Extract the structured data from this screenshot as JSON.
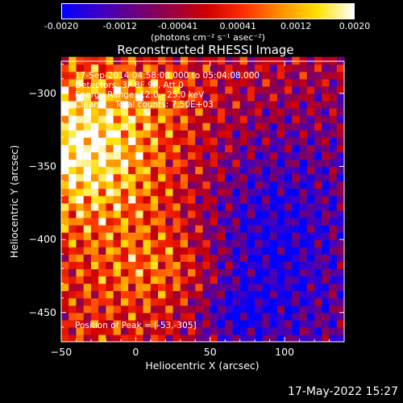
{
  "colorbar": {
    "tick_labels": [
      "-0.0020",
      "-0.0012",
      "-0.00041",
      "0.00041",
      "0.0012",
      "0.0020"
    ],
    "tick_values": [
      -0.002,
      -0.0012,
      -0.00041,
      0.00041,
      0.0012,
      0.002
    ],
    "range": [
      -0.002,
      0.002
    ],
    "units_text": "(photons cm⁻² s⁻¹ asec⁻²)",
    "colors": [
      "#0000ff",
      "#3b00c8",
      "#6a0080",
      "#9a0040",
      "#d00000",
      "#ff3000",
      "#ff9000",
      "#ffe000",
      "#ffffff"
    ]
  },
  "chart_data": {
    "type": "heatmap",
    "title": "Reconstructed RHESSI Image",
    "xlabel": "Heliocentric X (arcsec)",
    "ylabel": "Heliocentric Y (arcsec)",
    "xlim": [
      -50,
      140
    ],
    "ylim": [
      -470,
      -278
    ],
    "x_ticks": [
      -50,
      0,
      50,
      100
    ],
    "y_ticks": [
      -300,
      -350,
      -400,
      -450
    ],
    "peak_position": [
      -53,
      -305
    ],
    "total_counts": "7.50E+03"
  },
  "annotations": {
    "time_range": "17-Sep-2014 04:58:08.000 to 05:04:08.000",
    "detectors": "Detectors: 3F 8F 9F, Att 0",
    "energy_range": "Energy Range: 12.0 - 25.0 keV",
    "method": "Clean      Total counts: 7.50E+03",
    "peak": "Position of Peak = [-53,-305]"
  },
  "timestamp": "17-May-2022 15:27"
}
